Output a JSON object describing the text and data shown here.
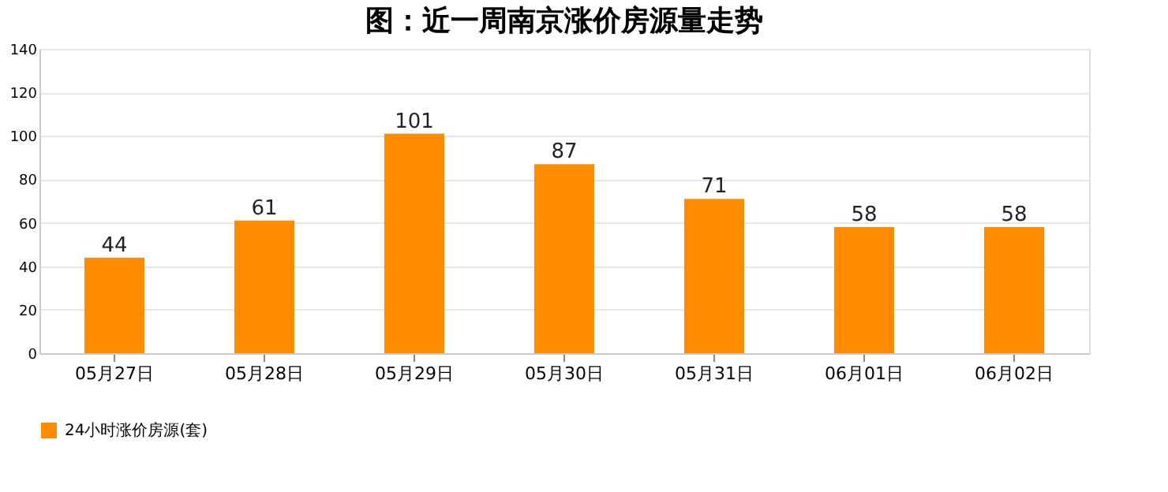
{
  "chart_data": {
    "type": "bar",
    "title": "图：近一周南京涨价房源量走势",
    "categories": [
      "05月27日",
      "05月28日",
      "05月29日",
      "05月30日",
      "05月31日",
      "06月01日",
      "06月02日"
    ],
    "series": [
      {
        "name": "24小时涨价房源(套)",
        "color": "#ff8c00",
        "values": [
          44,
          61,
          101,
          87,
          71,
          58,
          58
        ]
      }
    ],
    "ylim": [
      0,
      140
    ],
    "yticks": [
      0,
      20,
      40,
      60,
      80,
      100,
      120,
      140
    ],
    "grid": "y",
    "legend": "bottom",
    "data_labels": true
  }
}
